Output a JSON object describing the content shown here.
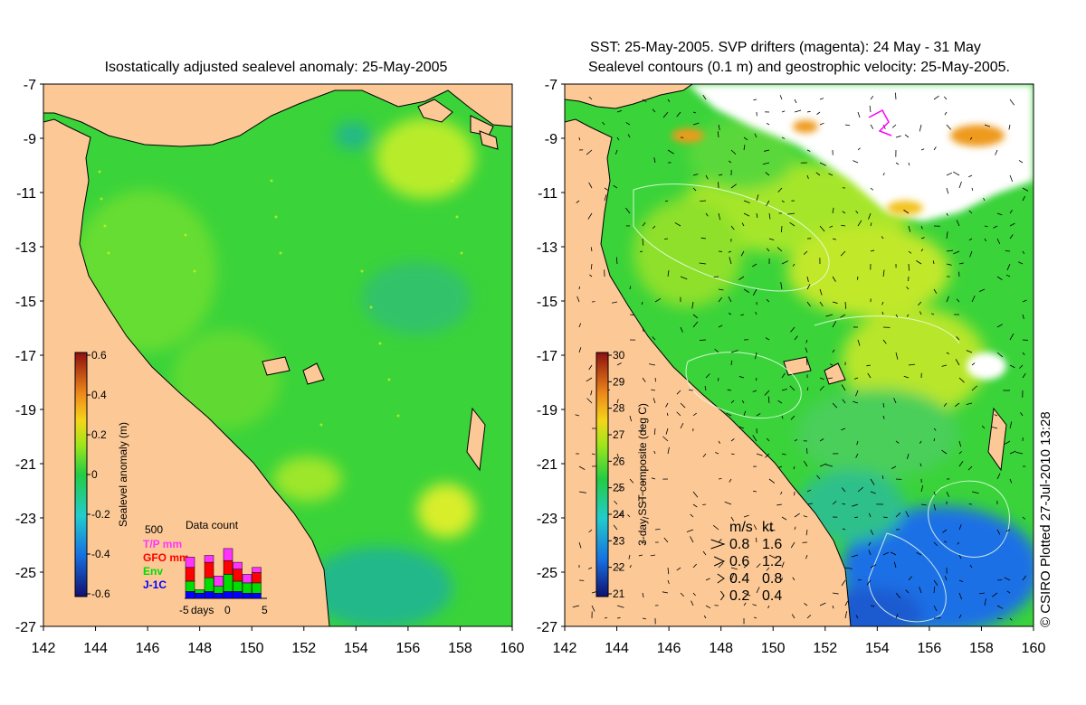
{
  "left_panel": {
    "title": "Isostatically adjusted sealevel anomaly: 25-May-2005",
    "colorbar": {
      "label": "Sealevel anomaly (m)",
      "ticks": [
        "0.6",
        "0.4",
        "0.2",
        "0",
        "-0.2",
        "-0.4",
        "-0.6"
      ],
      "range": [
        -0.6,
        0.6
      ]
    },
    "data_count": {
      "title": "Data count",
      "ymax_label": "500",
      "legend": [
        {
          "label": "T/P mm",
          "color": "#ff33ff"
        },
        {
          "label": "GFO mm",
          "color": "#ff0000"
        },
        {
          "label": "Env",
          "color": "#00dd00"
        },
        {
          "label": "J-1C",
          "color": "#0000ff"
        }
      ],
      "xlabel": "days",
      "xticks": [
        "-5",
        "0",
        "5"
      ],
      "bars": [
        {
          "day": -4,
          "j1c": 40,
          "env": 60,
          "gfo": 80,
          "tp": 60
        },
        {
          "day": -3,
          "j1c": 30,
          "env": 20,
          "gfo": 0,
          "tp": 0
        },
        {
          "day": -2,
          "j1c": 40,
          "env": 80,
          "gfo": 90,
          "tp": 40
        },
        {
          "day": -1,
          "j1c": 30,
          "env": 40,
          "gfo": 0,
          "tp": 60
        },
        {
          "day": 0,
          "j1c": 40,
          "env": 100,
          "gfo": 80,
          "tp": 70
        },
        {
          "day": 1,
          "j1c": 40,
          "env": 60,
          "gfo": 70,
          "tp": 40
        },
        {
          "day": 2,
          "j1c": 30,
          "env": 60,
          "gfo": 0,
          "tp": 50
        },
        {
          "day": 3,
          "j1c": 30,
          "env": 60,
          "gfo": 60,
          "tp": 30
        }
      ]
    }
  },
  "right_panel": {
    "title_line1": "SST: 25-May-2005. SVP drifters (magenta): 24 May - 31 May",
    "title_line2": "Sealevel contours (0.1 m) and geostrophic velocity: 25-May-2005.",
    "colorbar": {
      "label": "3-day SST composite (deg C)",
      "ticks": [
        "30",
        "29",
        "28",
        "27",
        "26",
        "25",
        "24",
        "23",
        "22",
        "21"
      ],
      "range": [
        21,
        30
      ]
    },
    "velocity_legend": {
      "headers": [
        "m/s",
        "kt"
      ],
      "rows": [
        {
          "ms": "0.8",
          "kt": "1.6"
        },
        {
          "ms": "0.6",
          "kt": "1.2"
        },
        {
          "ms": "0.4",
          "kt": "0.8"
        },
        {
          "ms": "0.2",
          "kt": "0.4"
        }
      ]
    }
  },
  "axes": {
    "lat_ticks": [
      "-7",
      "-9",
      "-11",
      "-13",
      "-15",
      "-17",
      "-19",
      "-21",
      "-23",
      "-25",
      "-27"
    ],
    "lon_ticks": [
      "142",
      "144",
      "146",
      "148",
      "150",
      "152",
      "154",
      "156",
      "158",
      "160"
    ],
    "lat_range": [
      -27,
      -7
    ],
    "lon_range": [
      142,
      160
    ]
  },
  "credit": "© CSIRO Plotted 27-Jul-2010 13:28",
  "colors": {
    "land": "#fcc996",
    "sea_base": "#3ad33a",
    "sea_light": "#7ee82a",
    "sea_dark": "#1bb05a",
    "cold": "#1a70e6",
    "warm": "#f2c21a",
    "cloud": "#ffffff"
  }
}
